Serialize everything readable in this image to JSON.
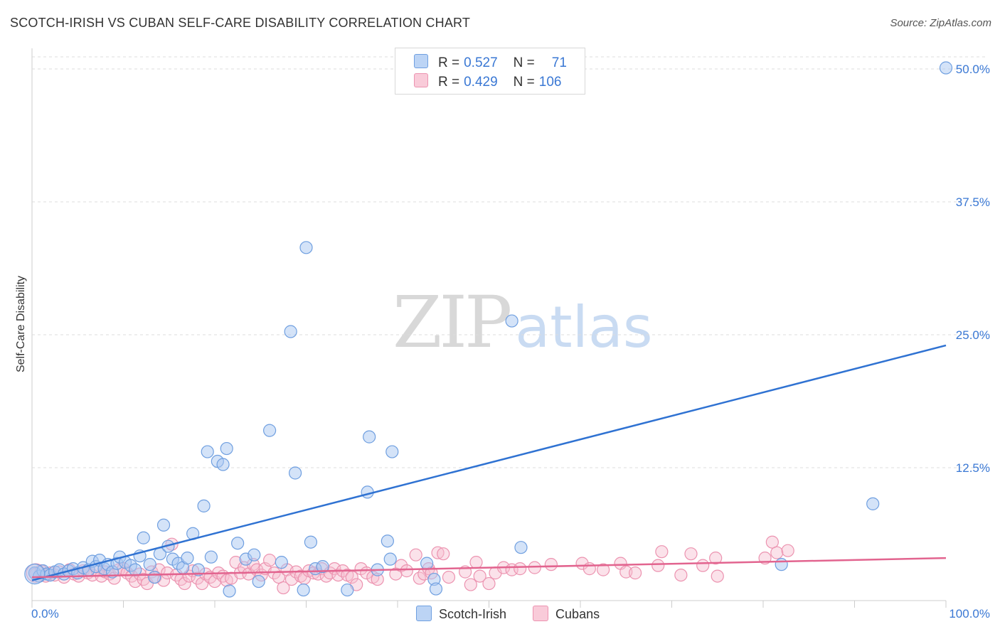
{
  "title": "SCOTCH-IRISH VS CUBAN SELF-CARE DISABILITY CORRELATION CHART",
  "source": "Source: ZipAtlas.com",
  "watermark": {
    "zip": "ZIP",
    "atlas": "atlas"
  },
  "colors": {
    "blue_fill": "#a9c8f2",
    "blue_stroke": "#6f9fe0",
    "blue_line": "#2f72d2",
    "pink_fill": "#f6bfd0",
    "pink_stroke": "#ec93b0",
    "pink_line": "#e2648f",
    "grid": "#dddddd",
    "tick_text": "#3a78d4"
  },
  "legend": {
    "rows": [
      {
        "r_label": "R =",
        "r_value": "0.527",
        "n_label": "N =",
        "n_value": "71"
      },
      {
        "r_label": "R =",
        "r_value": "0.429",
        "n_label": "N =",
        "n_value": "106"
      }
    ]
  },
  "bottom_legend": [
    "Scotch-Irish",
    "Cubans"
  ],
  "chart_data": {
    "type": "scatter",
    "title": "SCOTCH-IRISH VS CUBAN SELF-CARE DISABILITY CORRELATION CHART",
    "xlabel": "",
    "ylabel": "Self-Care Disability",
    "xlim": [
      0,
      100
    ],
    "ylim": [
      0,
      52
    ],
    "x_tick_labels": [
      "0.0%",
      "100.0%"
    ],
    "y_ticks": [
      12.5,
      25.0,
      37.5,
      50.0
    ],
    "y_tick_labels": [
      "12.5%",
      "25.0%",
      "37.5%",
      "50.0%"
    ],
    "grid": true,
    "legend_position": "top-center",
    "series": [
      {
        "name": "Scotch-Irish",
        "R": 0.527,
        "N": 71,
        "trend": {
          "x": [
            0,
            100
          ],
          "y": [
            1.9,
            24.0
          ]
        },
        "points": [
          [
            0.3,
            2.6
          ],
          [
            0.8,
            2.3
          ],
          [
            1.2,
            2.8
          ],
          [
            1.6,
            2.5
          ],
          [
            2.0,
            2.4
          ],
          [
            2.5,
            2.7
          ],
          [
            3.0,
            2.9
          ],
          [
            3.5,
            2.5
          ],
          [
            4.0,
            2.8
          ],
          [
            4.5,
            3.0
          ],
          [
            5.0,
            2.6
          ],
          [
            5.6,
            3.1
          ],
          [
            6.2,
            2.9
          ],
          [
            6.6,
            3.7
          ],
          [
            7.0,
            3.2
          ],
          [
            7.4,
            3.8
          ],
          [
            7.9,
            3.0
          ],
          [
            8.3,
            3.4
          ],
          [
            8.8,
            2.7
          ],
          [
            9.3,
            3.5
          ],
          [
            9.6,
            4.1
          ],
          [
            10.2,
            3.6
          ],
          [
            10.8,
            3.3
          ],
          [
            11.3,
            2.9
          ],
          [
            11.8,
            4.2
          ],
          [
            12.2,
            5.9
          ],
          [
            12.9,
            3.4
          ],
          [
            13.4,
            2.2
          ],
          [
            14.0,
            4.4
          ],
          [
            14.4,
            7.1
          ],
          [
            14.9,
            5.1
          ],
          [
            15.4,
            3.9
          ],
          [
            16.0,
            3.5
          ],
          [
            16.5,
            3.1
          ],
          [
            17.0,
            4.0
          ],
          [
            17.6,
            6.3
          ],
          [
            18.2,
            2.9
          ],
          [
            18.8,
            8.9
          ],
          [
            19.2,
            14.0
          ],
          [
            19.6,
            4.1
          ],
          [
            20.3,
            13.1
          ],
          [
            20.9,
            12.8
          ],
          [
            21.3,
            14.3
          ],
          [
            21.6,
            0.9
          ],
          [
            22.5,
            5.4
          ],
          [
            23.4,
            3.9
          ],
          [
            24.3,
            4.3
          ],
          [
            24.8,
            1.8
          ],
          [
            26.0,
            16.0
          ],
          [
            27.3,
            3.6
          ],
          [
            28.3,
            25.3
          ],
          [
            28.8,
            12.0
          ],
          [
            29.7,
            1.0
          ],
          [
            30.0,
            33.2
          ],
          [
            30.5,
            5.5
          ],
          [
            31.0,
            3.0
          ],
          [
            31.8,
            3.2
          ],
          [
            34.5,
            1.0
          ],
          [
            36.7,
            10.2
          ],
          [
            36.9,
            15.4
          ],
          [
            37.8,
            2.9
          ],
          [
            38.9,
            5.6
          ],
          [
            39.2,
            3.9
          ],
          [
            39.4,
            14.0
          ],
          [
            43.2,
            3.5
          ],
          [
            44.0,
            2.0
          ],
          [
            44.2,
            1.1
          ],
          [
            52.5,
            26.3
          ],
          [
            53.5,
            5.0
          ],
          [
            82.0,
            3.4
          ],
          [
            92.0,
            9.1
          ],
          [
            100.0,
            50.1
          ]
        ]
      },
      {
        "name": "Cubans",
        "R": 0.429,
        "N": 106,
        "trend": {
          "x": [
            0,
            100
          ],
          "y": [
            2.2,
            4.0
          ]
        },
        "points": [
          [
            0.4,
            2.5
          ],
          [
            1.0,
            2.8
          ],
          [
            1.5,
            2.3
          ],
          [
            2.0,
            2.6
          ],
          [
            2.5,
            2.4
          ],
          [
            3.0,
            2.7
          ],
          [
            3.5,
            2.2
          ],
          [
            4.1,
            2.9
          ],
          [
            4.6,
            2.5
          ],
          [
            5.1,
            2.3
          ],
          [
            5.6,
            2.8
          ],
          [
            6.1,
            2.6
          ],
          [
            6.6,
            2.4
          ],
          [
            7.1,
            2.9
          ],
          [
            7.6,
            2.3
          ],
          [
            8.0,
            2.7
          ],
          [
            8.5,
            2.5
          ],
          [
            9.0,
            2.1
          ],
          [
            9.5,
            2.9
          ],
          [
            10.0,
            3.0
          ],
          [
            10.4,
            2.6
          ],
          [
            10.9,
            2.3
          ],
          [
            11.3,
            1.8
          ],
          [
            11.8,
            2.5
          ],
          [
            12.2,
            2.0
          ],
          [
            12.6,
            1.6
          ],
          [
            13.1,
            2.7
          ],
          [
            13.5,
            2.2
          ],
          [
            13.9,
            2.9
          ],
          [
            14.4,
            1.9
          ],
          [
            14.8,
            2.6
          ],
          [
            15.3,
            5.3
          ],
          [
            15.8,
            2.4
          ],
          [
            16.3,
            2.0
          ],
          [
            16.7,
            1.6
          ],
          [
            17.2,
            2.3
          ],
          [
            17.6,
            2.8
          ],
          [
            18.1,
            2.1
          ],
          [
            18.6,
            1.6
          ],
          [
            19.0,
            2.5
          ],
          [
            19.5,
            2.2
          ],
          [
            20.0,
            1.8
          ],
          [
            20.4,
            2.6
          ],
          [
            20.9,
            2.3
          ],
          [
            21.3,
            1.9
          ],
          [
            21.8,
            2.1
          ],
          [
            22.3,
            3.6
          ],
          [
            22.8,
            2.6
          ],
          [
            23.2,
            3.1
          ],
          [
            23.7,
            2.5
          ],
          [
            24.2,
            3.4
          ],
          [
            24.6,
            2.9
          ],
          [
            25.1,
            2.4
          ],
          [
            25.5,
            3.0
          ],
          [
            26.0,
            3.8
          ],
          [
            26.5,
            2.6
          ],
          [
            27.0,
            2.2
          ],
          [
            27.5,
            1.2
          ],
          [
            27.9,
            2.9
          ],
          [
            28.4,
            2.0
          ],
          [
            28.9,
            2.7
          ],
          [
            29.4,
            2.3
          ],
          [
            29.8,
            2.1
          ],
          [
            30.3,
            2.8
          ],
          [
            30.8,
            2.6
          ],
          [
            31.3,
            2.5
          ],
          [
            31.7,
            3.0
          ],
          [
            32.2,
            2.3
          ],
          [
            32.6,
            2.6
          ],
          [
            33.1,
            3.0
          ],
          [
            33.5,
            2.4
          ],
          [
            34.0,
            2.8
          ],
          [
            34.5,
            2.4
          ],
          [
            35.0,
            2.2
          ],
          [
            35.5,
            1.5
          ],
          [
            36.0,
            3.0
          ],
          [
            36.6,
            2.6
          ],
          [
            37.3,
            2.2
          ],
          [
            37.8,
            2.0
          ],
          [
            39.8,
            2.5
          ],
          [
            40.4,
            3.3
          ],
          [
            41.0,
            2.8
          ],
          [
            42.0,
            4.3
          ],
          [
            42.4,
            2.1
          ],
          [
            42.9,
            2.5
          ],
          [
            43.4,
            3.0
          ],
          [
            43.7,
            2.6
          ],
          [
            44.4,
            4.5
          ],
          [
            45.0,
            4.4
          ],
          [
            45.6,
            2.2
          ],
          [
            47.4,
            2.7
          ],
          [
            48.0,
            1.5
          ],
          [
            48.6,
            3.6
          ],
          [
            49.0,
            2.3
          ],
          [
            50.0,
            1.6
          ],
          [
            50.7,
            2.6
          ],
          [
            51.6,
            3.1
          ],
          [
            52.5,
            2.9
          ],
          [
            53.4,
            3.0
          ],
          [
            55.0,
            3.1
          ],
          [
            56.8,
            3.4
          ],
          [
            60.2,
            3.5
          ],
          [
            61.0,
            3.0
          ],
          [
            62.5,
            2.9
          ],
          [
            64.4,
            3.5
          ],
          [
            65.0,
            2.7
          ],
          [
            66.0,
            2.6
          ],
          [
            68.5,
            3.3
          ],
          [
            68.9,
            4.6
          ],
          [
            71.0,
            2.4
          ],
          [
            72.1,
            4.4
          ],
          [
            73.4,
            3.3
          ],
          [
            74.8,
            4.0
          ],
          [
            75.0,
            2.3
          ],
          [
            80.2,
            4.0
          ],
          [
            81.0,
            5.5
          ],
          [
            81.5,
            4.5
          ],
          [
            82.7,
            4.7
          ]
        ]
      }
    ]
  }
}
